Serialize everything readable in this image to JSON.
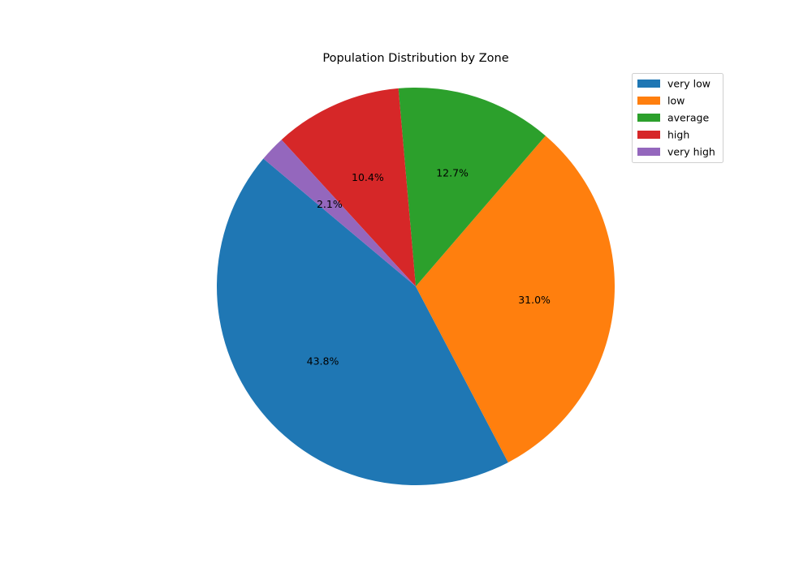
{
  "chart_data": {
    "type": "pie",
    "title": "Population Distribution by Zone",
    "categories": [
      "very low",
      "low",
      "average",
      "high",
      "very high"
    ],
    "values": [
      43.8,
      31.0,
      12.7,
      10.4,
      2.1
    ],
    "value_labels": [
      "43.8%",
      "31.0%",
      "12.7%",
      "10.4%",
      "2.1%"
    ],
    "colors": [
      "#1f77b4",
      "#ff7f0e",
      "#2ca02c",
      "#d62728",
      "#9467bd"
    ],
    "start_angle_deg": 140,
    "direction": "counterclockwise",
    "legend_position": "top-right"
  }
}
